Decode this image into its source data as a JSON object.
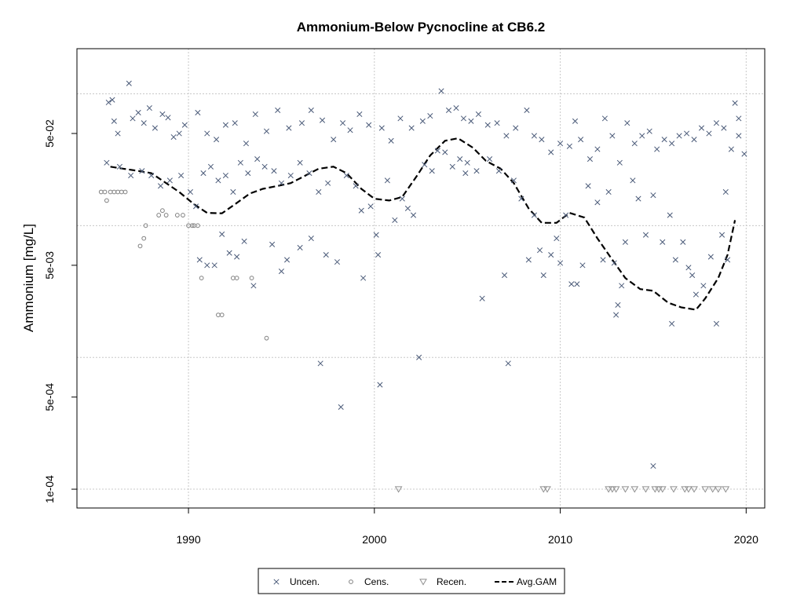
{
  "chart_data": {
    "type": "scatter",
    "title": "Ammonium-Below Pycnocline at CB6.2",
    "xlabel": "",
    "ylabel": "Ammonium [mg/L]",
    "x_scale": "linear",
    "y_scale": "log",
    "xlim": [
      1984.0,
      2021.0
    ],
    "ylim": [
      7.2e-05,
      0.22
    ],
    "x_ticks": [
      1990,
      2000,
      2010,
      2020
    ],
    "y_ticks": [
      {
        "value": 0.0001,
        "label": "1e-04"
      },
      {
        "value": 0.0005,
        "label": "5e-04"
      },
      {
        "value": 0.005,
        "label": "5e-03"
      },
      {
        "value": 0.05,
        "label": "5e-02"
      }
    ],
    "grid": true,
    "grid_values_y": [
      0.0001,
      0.001,
      0.01,
      0.1
    ],
    "legend_position": "bottom-center",
    "colors": {
      "uncen": "#4a5a78",
      "cens": "#808080",
      "recen": "#909090",
      "gam": "#000000",
      "grid": "#c8c8c8"
    },
    "legend": [
      {
        "key": "uncen",
        "label": "Uncen."
      },
      {
        "key": "cens",
        "label": "Cens."
      },
      {
        "key": "recen",
        "label": "Recen."
      },
      {
        "key": "gam",
        "label": "Avg.GAM"
      }
    ],
    "series": [
      {
        "key": "uncen",
        "name": "Uncen.",
        "marker": "x",
        "points": [
          [
            1985.7,
            0.086
          ],
          [
            1985.9,
            0.09
          ],
          [
            1986.0,
            0.062
          ],
          [
            1986.2,
            0.05
          ],
          [
            1986.8,
            0.12
          ],
          [
            1987.0,
            0.065
          ],
          [
            1987.3,
            0.072
          ],
          [
            1987.6,
            0.06
          ],
          [
            1987.9,
            0.078
          ],
          [
            1988.2,
            0.055
          ],
          [
            1988.6,
            0.07
          ],
          [
            1988.9,
            0.066
          ],
          [
            1989.2,
            0.047
          ],
          [
            1989.5,
            0.05
          ],
          [
            1989.8,
            0.058
          ],
          [
            1985.6,
            0.03
          ],
          [
            1986.3,
            0.028
          ],
          [
            1986.9,
            0.024
          ],
          [
            1987.5,
            0.026
          ],
          [
            1988.0,
            0.024
          ],
          [
            1988.5,
            0.02
          ],
          [
            1989.0,
            0.022
          ],
          [
            1989.6,
            0.024
          ],
          [
            1990.1,
            0.018
          ],
          [
            1990.4,
            0.014
          ],
          [
            1990.8,
            0.025
          ],
          [
            1991.2,
            0.028
          ],
          [
            1991.6,
            0.022
          ],
          [
            1992.0,
            0.024
          ],
          [
            1992.4,
            0.018
          ],
          [
            1992.8,
            0.03
          ],
          [
            1993.2,
            0.025
          ],
          [
            1993.7,
            0.032
          ],
          [
            1994.1,
            0.028
          ],
          [
            1994.6,
            0.026
          ],
          [
            1995.0,
            0.021
          ],
          [
            1995.5,
            0.024
          ],
          [
            1996.0,
            0.03
          ],
          [
            1996.5,
            0.025
          ],
          [
            1997.0,
            0.018
          ],
          [
            1997.5,
            0.021
          ],
          [
            1990.6,
            0.0055
          ],
          [
            1991.0,
            0.005
          ],
          [
            1991.4,
            0.005
          ],
          [
            1991.8,
            0.0086
          ],
          [
            1992.2,
            0.0062
          ],
          [
            1992.6,
            0.0058
          ],
          [
            1993.0,
            0.0076
          ],
          [
            1993.5,
            0.0035
          ],
          [
            1994.5,
            0.0072
          ],
          [
            1995.0,
            0.0045
          ],
          [
            1995.3,
            0.0055
          ],
          [
            1996.0,
            0.0068
          ],
          [
            1996.6,
            0.008
          ],
          [
            1997.1,
            0.0009
          ],
          [
            1997.4,
            0.006
          ],
          [
            1998.0,
            0.0053
          ],
          [
            1998.2,
            0.00042
          ],
          [
            1999.4,
            0.004
          ],
          [
            1990.5,
            0.072
          ],
          [
            1991.0,
            0.05
          ],
          [
            1991.5,
            0.045
          ],
          [
            1992.0,
            0.058
          ],
          [
            1992.5,
            0.06
          ],
          [
            1993.1,
            0.042
          ],
          [
            1993.6,
            0.07
          ],
          [
            1994.2,
            0.052
          ],
          [
            1994.8,
            0.075
          ],
          [
            1995.4,
            0.055
          ],
          [
            1996.1,
            0.06
          ],
          [
            1996.6,
            0.075
          ],
          [
            1997.2,
            0.063
          ],
          [
            1997.8,
            0.045
          ],
          [
            1998.3,
            0.06
          ],
          [
            1998.7,
            0.053
          ],
          [
            1999.2,
            0.07
          ],
          [
            1999.7,
            0.058
          ],
          [
            1998.5,
            0.024
          ],
          [
            1999.0,
            0.02
          ],
          [
            1999.3,
            0.013
          ],
          [
            1999.8,
            0.014
          ],
          [
            2000.1,
            0.0085
          ],
          [
            2000.2,
            0.006
          ],
          [
            2000.3,
            0.00062
          ],
          [
            2000.7,
            0.022
          ],
          [
            2001.1,
            0.011
          ],
          [
            2001.5,
            0.016
          ],
          [
            2001.8,
            0.0135
          ],
          [
            2002.1,
            0.012
          ],
          [
            2002.4,
            0.001
          ],
          [
            2002.7,
            0.029
          ],
          [
            2003.1,
            0.026
          ],
          [
            2003.4,
            0.037
          ],
          [
            2003.8,
            0.036
          ],
          [
            2004.2,
            0.028
          ],
          [
            2004.6,
            0.032
          ],
          [
            2004.9,
            0.025
          ],
          [
            2000.4,
            0.055
          ],
          [
            2000.9,
            0.044
          ],
          [
            2001.4,
            0.065
          ],
          [
            2002.0,
            0.055
          ],
          [
            2002.6,
            0.062
          ],
          [
            2003.0,
            0.068
          ],
          [
            2003.6,
            0.105
          ],
          [
            2004.0,
            0.075
          ],
          [
            2004.4,
            0.078
          ],
          [
            2004.8,
            0.065
          ],
          [
            2005.2,
            0.062
          ],
          [
            2005.6,
            0.07
          ],
          [
            2006.1,
            0.058
          ],
          [
            2006.6,
            0.06
          ],
          [
            2007.1,
            0.048
          ],
          [
            2007.6,
            0.055
          ],
          [
            2005.0,
            0.03
          ],
          [
            2005.5,
            0.026
          ],
          [
            2005.8,
            0.0028
          ],
          [
            2006.2,
            0.032
          ],
          [
            2006.7,
            0.026
          ],
          [
            2007.0,
            0.0042
          ],
          [
            2007.2,
            0.0009
          ],
          [
            2007.5,
            0.022
          ],
          [
            2007.9,
            0.016
          ],
          [
            2008.3,
            0.0055
          ],
          [
            2008.6,
            0.012
          ],
          [
            2008.9,
            0.0065
          ],
          [
            2009.1,
            0.0042
          ],
          [
            2009.5,
            0.006
          ],
          [
            2009.8,
            0.008
          ],
          [
            2010.0,
            0.0052
          ],
          [
            2010.3,
            0.012
          ],
          [
            2010.6,
            0.0036
          ],
          [
            2010.9,
            0.0036
          ],
          [
            2011.2,
            0.005
          ],
          [
            2008.2,
            0.075
          ],
          [
            2008.6,
            0.048
          ],
          [
            2009.0,
            0.045
          ],
          [
            2009.5,
            0.036
          ],
          [
            2010.0,
            0.042
          ],
          [
            2010.5,
            0.04
          ],
          [
            2010.8,
            0.062
          ],
          [
            2011.1,
            0.045
          ],
          [
            2011.6,
            0.032
          ],
          [
            2012.0,
            0.038
          ],
          [
            2012.4,
            0.065
          ],
          [
            2012.8,
            0.048
          ],
          [
            2013.2,
            0.03
          ],
          [
            2013.6,
            0.06
          ],
          [
            2014.0,
            0.042
          ],
          [
            2014.4,
            0.048
          ],
          [
            2014.8,
            0.052
          ],
          [
            2015.2,
            0.038
          ],
          [
            2015.6,
            0.045
          ],
          [
            2016.0,
            0.042
          ],
          [
            2016.4,
            0.048
          ],
          [
            2016.8,
            0.05
          ],
          [
            2017.2,
            0.045
          ],
          [
            2017.6,
            0.055
          ],
          [
            2018.0,
            0.05
          ],
          [
            2018.4,
            0.06
          ],
          [
            2018.8,
            0.055
          ],
          [
            2019.2,
            0.038
          ],
          [
            2019.6,
            0.048
          ],
          [
            2011.5,
            0.02
          ],
          [
            2012.0,
            0.015
          ],
          [
            2012.3,
            0.0055
          ],
          [
            2012.6,
            0.018
          ],
          [
            2012.9,
            0.0052
          ],
          [
            2013.0,
            0.0021
          ],
          [
            2013.1,
            0.0025
          ],
          [
            2013.3,
            0.0035
          ],
          [
            2013.5,
            0.0075
          ],
          [
            2013.9,
            0.022
          ],
          [
            2014.2,
            0.016
          ],
          [
            2014.6,
            0.0085
          ],
          [
            2015.0,
            0.017
          ],
          [
            2015.5,
            0.0075
          ],
          [
            2015.9,
            0.012
          ],
          [
            2016.2,
            0.0055
          ],
          [
            2016.6,
            0.0075
          ],
          [
            2016.9,
            0.0048
          ],
          [
            2017.3,
            0.003
          ],
          [
            2017.7,
            0.0035
          ],
          [
            2018.1,
            0.0058
          ],
          [
            2018.4,
            0.0018
          ],
          [
            2018.7,
            0.0085
          ],
          [
            2019.0,
            0.0055
          ],
          [
            2015.0,
            0.00015
          ],
          [
            2016.0,
            0.0018
          ],
          [
            2017.1,
            0.0042
          ],
          [
            2018.9,
            0.018
          ],
          [
            2019.4,
            0.085
          ],
          [
            2019.6,
            0.065
          ],
          [
            2019.9,
            0.035
          ]
        ]
      },
      {
        "key": "cens",
        "name": "Cens.",
        "marker": "o",
        "points": [
          [
            1985.3,
            0.018
          ],
          [
            1985.5,
            0.018
          ],
          [
            1985.6,
            0.0155
          ],
          [
            1985.8,
            0.018
          ],
          [
            1986.0,
            0.018
          ],
          [
            1986.2,
            0.018
          ],
          [
            1986.4,
            0.018
          ],
          [
            1986.6,
            0.018
          ],
          [
            1987.4,
            0.007
          ],
          [
            1987.6,
            0.008
          ],
          [
            1987.7,
            0.01
          ],
          [
            1988.4,
            0.012
          ],
          [
            1988.6,
            0.013
          ],
          [
            1988.8,
            0.012
          ],
          [
            1989.4,
            0.012
          ],
          [
            1989.7,
            0.012
          ],
          [
            1990.0,
            0.01
          ],
          [
            1990.2,
            0.01
          ],
          [
            1990.3,
            0.01
          ],
          [
            1990.5,
            0.01
          ],
          [
            1990.7,
            0.004
          ],
          [
            1991.6,
            0.0021
          ],
          [
            1991.8,
            0.0021
          ],
          [
            1992.4,
            0.004
          ],
          [
            1992.6,
            0.004
          ],
          [
            1993.4,
            0.004
          ],
          [
            1994.2,
            0.0014
          ]
        ]
      },
      {
        "key": "recen",
        "name": "Recen.",
        "marker": "triangle-down",
        "points": [
          [
            2001.3,
            0.0001
          ],
          [
            2009.1,
            0.0001
          ],
          [
            2009.3,
            0.0001
          ],
          [
            2012.6,
            0.0001
          ],
          [
            2012.8,
            0.0001
          ],
          [
            2013.0,
            0.0001
          ],
          [
            2013.5,
            0.0001
          ],
          [
            2014.0,
            0.0001
          ],
          [
            2014.6,
            0.0001
          ],
          [
            2015.1,
            0.0001
          ],
          [
            2015.3,
            0.0001
          ],
          [
            2015.5,
            0.0001
          ],
          [
            2016.1,
            0.0001
          ],
          [
            2016.7,
            0.0001
          ],
          [
            2016.9,
            0.0001
          ],
          [
            2017.2,
            0.0001
          ],
          [
            2017.8,
            0.0001
          ],
          [
            2018.2,
            0.0001
          ],
          [
            2018.5,
            0.0001
          ],
          [
            2018.9,
            0.0001
          ]
        ]
      },
      {
        "key": "gam",
        "name": "Avg.GAM",
        "marker": "line",
        "points": [
          [
            1985.8,
            0.028
          ],
          [
            1986.5,
            0.027
          ],
          [
            1987.3,
            0.026
          ],
          [
            1988.0,
            0.025
          ],
          [
            1988.8,
            0.021
          ],
          [
            1989.5,
            0.018
          ],
          [
            1990.3,
            0.0145
          ],
          [
            1991.0,
            0.0125
          ],
          [
            1991.8,
            0.0124
          ],
          [
            1992.5,
            0.0145
          ],
          [
            1993.3,
            0.0175
          ],
          [
            1994.0,
            0.019
          ],
          [
            1994.8,
            0.02
          ],
          [
            1995.5,
            0.021
          ],
          [
            1996.3,
            0.024
          ],
          [
            1997.0,
            0.027
          ],
          [
            1997.8,
            0.028
          ],
          [
            1998.5,
            0.025
          ],
          [
            1999.3,
            0.019
          ],
          [
            2000.0,
            0.016
          ],
          [
            2000.8,
            0.0155
          ],
          [
            2001.5,
            0.0165
          ],
          [
            2002.3,
            0.024
          ],
          [
            2003.0,
            0.034
          ],
          [
            2003.8,
            0.044
          ],
          [
            2004.5,
            0.046
          ],
          [
            2005.3,
            0.039
          ],
          [
            2006.0,
            0.031
          ],
          [
            2006.8,
            0.027
          ],
          [
            2007.5,
            0.021
          ],
          [
            2008.3,
            0.0135
          ],
          [
            2009.0,
            0.0105
          ],
          [
            2009.8,
            0.0105
          ],
          [
            2010.5,
            0.0125
          ],
          [
            2011.3,
            0.0115
          ],
          [
            2012.0,
            0.008
          ],
          [
            2012.8,
            0.0055
          ],
          [
            2013.5,
            0.004
          ],
          [
            2014.3,
            0.0033
          ],
          [
            2015.0,
            0.0032
          ],
          [
            2015.8,
            0.0026
          ],
          [
            2016.5,
            0.0024
          ],
          [
            2017.3,
            0.0023
          ],
          [
            2017.8,
            0.0028
          ],
          [
            2018.5,
            0.004
          ],
          [
            2019.0,
            0.006
          ],
          [
            2019.4,
            0.011
          ]
        ]
      }
    ]
  }
}
